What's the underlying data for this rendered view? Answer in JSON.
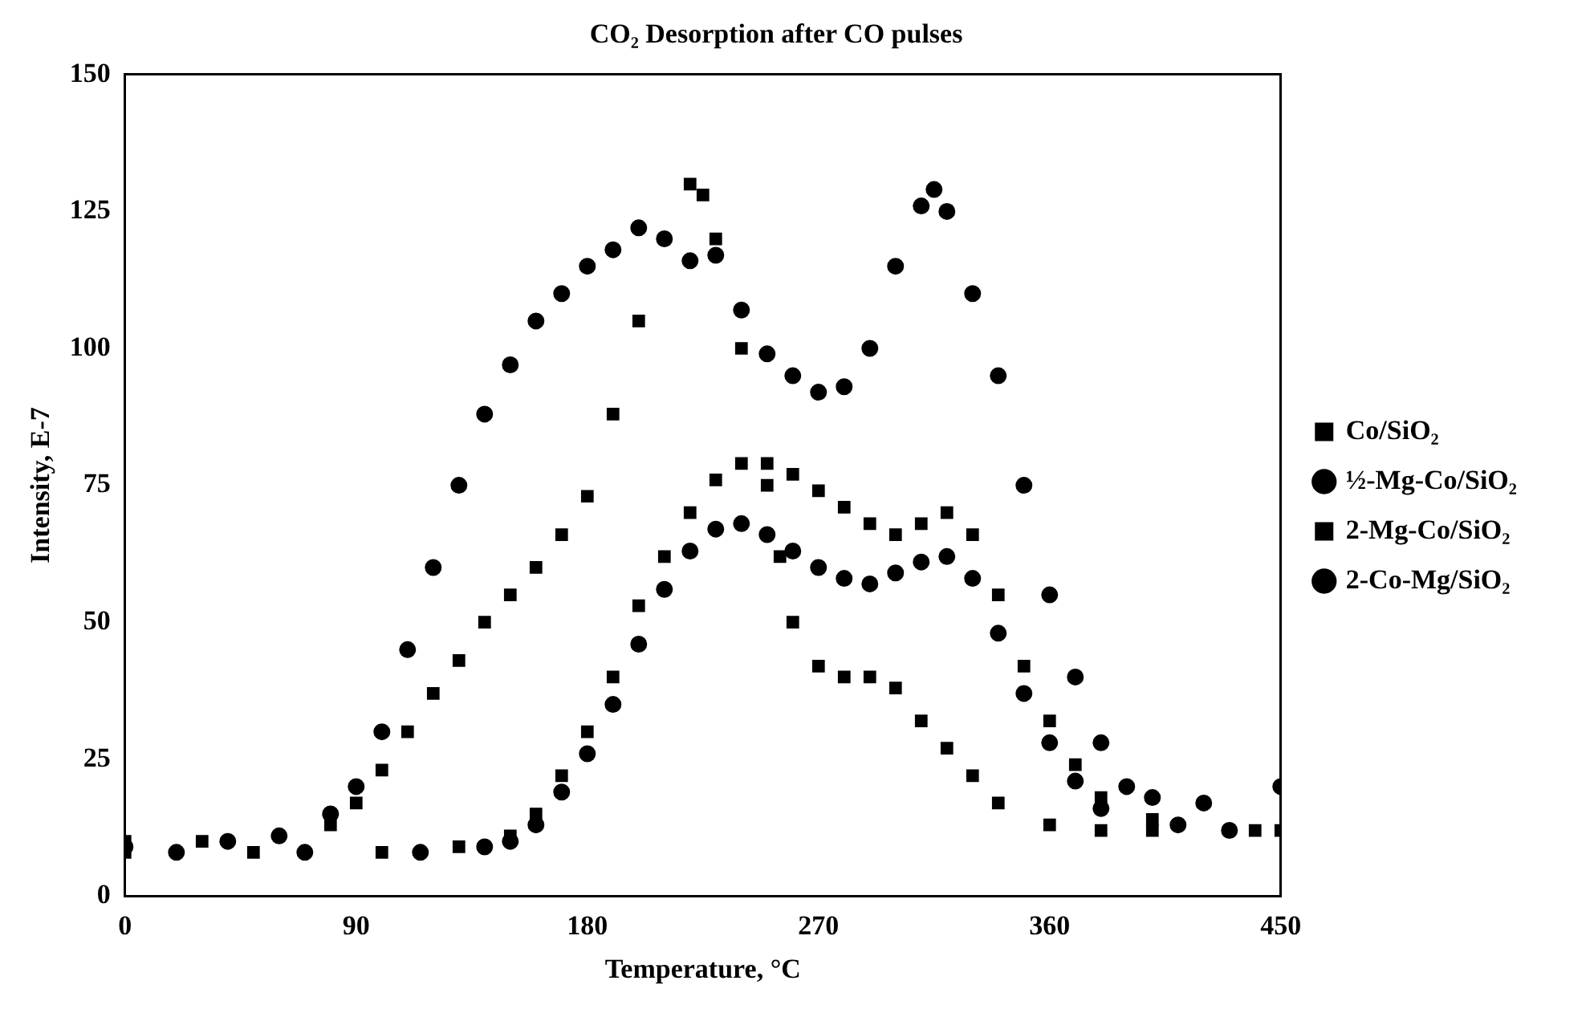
{
  "chart_data": {
    "type": "scatter",
    "title": "CO₂ Desorption after CO pulses",
    "xlabel": "Temperature, °C",
    "ylabel": "Intensity, E-7",
    "xlim": [
      0,
      450
    ],
    "xticks": [
      0,
      90,
      180,
      270,
      360,
      450
    ],
    "ylim": [
      0,
      150
    ],
    "yticks": [
      0,
      25,
      50,
      75,
      100,
      125,
      150
    ],
    "grid": false,
    "legend": "right",
    "series": [
      {
        "name": "Co/SiO₂",
        "color": "#000000",
        "marker": "square",
        "x": [
          0,
          30,
          80,
          90,
          100,
          110,
          120,
          130,
          140,
          150,
          160,
          170,
          180,
          190,
          200,
          220,
          225,
          230,
          240,
          250,
          255,
          260,
          270,
          280,
          290,
          300,
          310,
          320,
          330,
          340,
          360,
          380,
          400,
          450
        ],
        "values": [
          10,
          10,
          13,
          17,
          23,
          30,
          37,
          43,
          50,
          55,
          60,
          66,
          73,
          88,
          105,
          130,
          128,
          120,
          100,
          75,
          62,
          50,
          42,
          40,
          40,
          38,
          32,
          27,
          22,
          17,
          13,
          12,
          12,
          12
        ]
      },
      {
        "name": "½-Mg-Co/SiO₂",
        "color": "#000000",
        "marker": "circle",
        "x": [
          0,
          40,
          60,
          80,
          90,
          100,
          110,
          120,
          130,
          140,
          150,
          160,
          170,
          180,
          190,
          200,
          210,
          220,
          230,
          240,
          250,
          260,
          270,
          280,
          290,
          300,
          310,
          315,
          320,
          330,
          340,
          350,
          360,
          370,
          380,
          390,
          400,
          420,
          450
        ],
        "values": [
          9,
          10,
          11,
          15,
          20,
          30,
          45,
          60,
          75,
          88,
          97,
          105,
          110,
          115,
          118,
          122,
          120,
          116,
          117,
          107,
          99,
          95,
          92,
          93,
          100,
          115,
          126,
          129,
          125,
          110,
          95,
          75,
          55,
          40,
          28,
          20,
          18,
          17,
          20
        ]
      },
      {
        "name": "2-Mg-Co/SiO₂",
        "color": "#000000",
        "marker": "square",
        "x": [
          0,
          50,
          100,
          130,
          150,
          160,
          170,
          180,
          190,
          200,
          210,
          220,
          230,
          240,
          250,
          260,
          270,
          280,
          290,
          300,
          310,
          320,
          330,
          340,
          350,
          360,
          370,
          380,
          400,
          440
        ],
        "values": [
          8,
          8,
          8,
          9,
          11,
          15,
          22,
          30,
          40,
          53,
          62,
          70,
          76,
          79,
          79,
          77,
          74,
          71,
          68,
          66,
          68,
          70,
          66,
          55,
          42,
          32,
          24,
          18,
          14,
          12
        ]
      },
      {
        "name": "2-Co-Mg/SiO₂",
        "color": "#000000",
        "marker": "circle",
        "x": [
          20,
          70,
          115,
          140,
          150,
          160,
          170,
          180,
          190,
          200,
          210,
          220,
          230,
          240,
          250,
          260,
          270,
          280,
          290,
          300,
          310,
          320,
          330,
          340,
          350,
          360,
          370,
          380,
          410,
          430
        ],
        "values": [
          8,
          8,
          8,
          9,
          10,
          13,
          19,
          26,
          35,
          46,
          56,
          63,
          67,
          68,
          66,
          63,
          60,
          58,
          57,
          59,
          61,
          62,
          58,
          48,
          37,
          28,
          21,
          16,
          13,
          12
        ]
      }
    ]
  }
}
